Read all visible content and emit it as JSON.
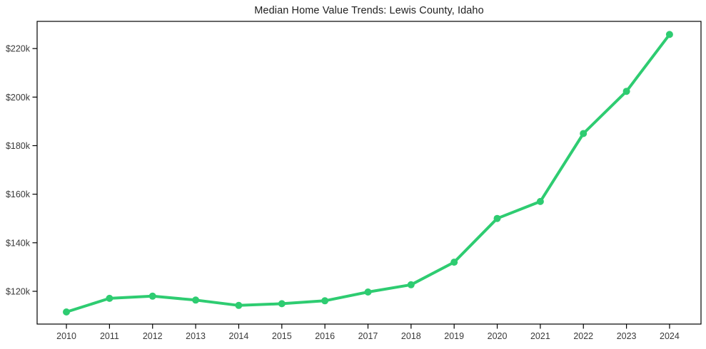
{
  "chart_data": {
    "type": "line",
    "title": "Median Home Value Trends: Lewis County, Idaho",
    "series_name": "Median Home Value",
    "x": [
      2010,
      2011,
      2012,
      2013,
      2014,
      2015,
      2016,
      2017,
      2018,
      2019,
      2020,
      2021,
      2022,
      2023,
      2024
    ],
    "values": [
      111500,
      117100,
      118000,
      116400,
      114200,
      114900,
      116100,
      119700,
      122700,
      132000,
      150000,
      157000,
      185000,
      202400,
      225800
    ],
    "x_tick_labels": [
      "2010",
      "2011",
      "2012",
      "2013",
      "2014",
      "2015",
      "2016",
      "2017",
      "2018",
      "2019",
      "2020",
      "2021",
      "2022",
      "2023",
      "2024"
    ],
    "y_ticks": [
      {
        "value": 120000,
        "label": "$120k"
      },
      {
        "value": 140000,
        "label": "$140k"
      },
      {
        "value": 160000,
        "label": "$160k"
      },
      {
        "value": 180000,
        "label": "$180k"
      },
      {
        "value": 200000,
        "label": "$200k"
      },
      {
        "value": 220000,
        "label": "$220k"
      }
    ],
    "xlim": [
      2009.32,
      2024.73
    ],
    "ylim": [
      106500,
      231200
    ],
    "xlabel": "",
    "ylabel": "",
    "grid": false,
    "legend": "none",
    "line_color": "#2ecc71",
    "marker": "circle",
    "marker_radius": 5,
    "line_width": 4,
    "axis_color": "#000000",
    "tick_label_color": "#3a3a3a",
    "title_color": "#1f1f1f",
    "background_color": "#ffffff"
  }
}
